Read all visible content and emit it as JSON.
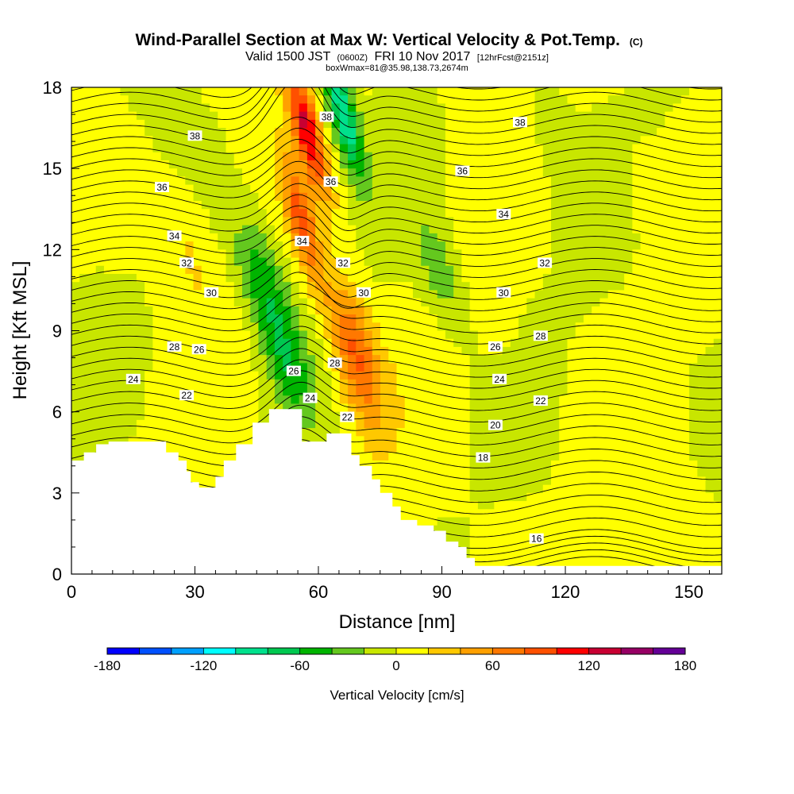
{
  "title": "Wind-Parallel Section at Max W: Vertical Velocity & Pot.Temp.",
  "title_mark": "(C)",
  "subtitle_part1": "Valid 1500 JST",
  "subtitle_small1": "(0600Z)",
  "subtitle_part2": "FRI 10 Nov 2017",
  "subtitle_small2": "[12hrFcst@2151z]",
  "subtitle2": "boxWmax=81@35.98,138.73,2674m",
  "chart_data": {
    "type": "heatmap",
    "xlabel": "Distance [nm]",
    "ylabel": "Height [Kft MSL]",
    "xlim": [
      0,
      158
    ],
    "ylim": [
      0,
      18
    ],
    "x_ticks": [
      0,
      30,
      60,
      90,
      120,
      150
    ],
    "y_ticks": [
      0,
      3,
      6,
      9,
      12,
      15,
      18
    ],
    "colorbar": {
      "label": "Vertical Velocity [cm/s]",
      "range": [
        -180,
        180
      ],
      "tick_labels": [
        -180,
        -120,
        -60,
        0,
        60,
        120,
        180
      ],
      "colors": [
        "#0000ff",
        "#0050ff",
        "#00a0ff",
        "#00ffff",
        "#00e08c",
        "#00c850",
        "#00b400",
        "#64c81e",
        "#c8e600",
        "#ffff00",
        "#ffc800",
        "#ffa000",
        "#ff7800",
        "#ff5000",
        "#ff0000",
        "#c80032",
        "#960064",
        "#640096"
      ]
    },
    "series": [
      {
        "name": "vertical_velocity_features_cm_s",
        "values": [
          {
            "x": 57,
            "y": 16.5,
            "w": 115
          },
          {
            "x": 56,
            "y": 13.0,
            "w": 80
          },
          {
            "x": 68,
            "y": 9.0,
            "w": 60
          },
          {
            "x": 70,
            "y": 7.0,
            "w": 45
          },
          {
            "x": 46,
            "y": 11.0,
            "w": -55
          },
          {
            "x": 52,
            "y": 8.0,
            "w": -50
          },
          {
            "x": 66,
            "y": 17.0,
            "w": -100
          },
          {
            "x": 28,
            "y": 12.0,
            "w": 20
          },
          {
            "x": 90,
            "y": 11.0,
            "w": -35
          },
          {
            "x": 118,
            "y": 16.0,
            "w": -20
          },
          {
            "x": 102,
            "y": 10.0,
            "w": 10
          },
          {
            "x": 140,
            "y": 14.0,
            "w": 10
          }
        ]
      }
    ],
    "terrain": {
      "x": [
        0,
        3,
        3,
        6,
        6,
        9,
        9,
        23,
        23,
        26,
        26,
        28,
        28,
        29,
        29,
        31,
        31,
        35,
        35,
        37,
        37,
        40,
        40,
        44,
        44,
        48,
        48,
        56,
        56,
        62,
        62,
        68,
        68,
        70,
        70,
        73,
        73,
        75,
        75,
        78,
        78,
        80,
        80,
        84,
        84,
        88,
        88,
        91,
        91,
        94,
        94,
        96,
        96,
        98,
        98,
        158
      ],
      "y": [
        4.2,
        4.2,
        4.5,
        4.5,
        4.8,
        4.8,
        4.9,
        4.9,
        4.5,
        4.5,
        4.2,
        4.2,
        3.8,
        3.8,
        3.4,
        3.4,
        3.2,
        3.2,
        3.6,
        3.6,
        4.2,
        4.2,
        4.8,
        4.8,
        5.6,
        5.6,
        6.1,
        6.1,
        4.9,
        4.9,
        5.2,
        5.2,
        4.4,
        4.4,
        4.0,
        4.0,
        3.5,
        3.5,
        3.0,
        3.0,
        2.5,
        2.5,
        2.0,
        2.0,
        1.8,
        1.8,
        1.6,
        1.6,
        1.2,
        1.2,
        1.0,
        1.0,
        0.6,
        0.6,
        0.3,
        0.3
      ]
    },
    "theta_contours": [
      {
        "name": "16",
        "values": [
          16
        ]
      },
      {
        "name": "18",
        "values": [
          18
        ]
      },
      {
        "name": "20",
        "values": [
          20
        ]
      },
      {
        "name": "22",
        "values": [
          22
        ]
      },
      {
        "name": "24",
        "values": [
          24
        ]
      },
      {
        "name": "26",
        "values": [
          26
        ]
      },
      {
        "name": "28",
        "values": [
          28
        ]
      },
      {
        "name": "30",
        "values": [
          30
        ]
      },
      {
        "name": "32",
        "values": [
          32
        ]
      },
      {
        "name": "34",
        "values": [
          34
        ]
      },
      {
        "name": "36",
        "values": [
          36
        ]
      },
      {
        "name": "38",
        "values": [
          38
        ]
      }
    ],
    "contour_labels": [
      {
        "text": "38",
        "x": 30,
        "y": 16.2
      },
      {
        "text": "38",
        "x": 62,
        "y": 16.9
      },
      {
        "text": "38",
        "x": 109,
        "y": 16.7
      },
      {
        "text": "36",
        "x": 22,
        "y": 14.3
      },
      {
        "text": "36",
        "x": 63,
        "y": 14.5
      },
      {
        "text": "36",
        "x": 95,
        "y": 14.9
      },
      {
        "text": "34",
        "x": 25,
        "y": 12.5
      },
      {
        "text": "34",
        "x": 56,
        "y": 12.3
      },
      {
        "text": "34",
        "x": 105,
        "y": 13.3
      },
      {
        "text": "32",
        "x": 28,
        "y": 11.5
      },
      {
        "text": "32",
        "x": 66,
        "y": 11.5
      },
      {
        "text": "32",
        "x": 115,
        "y": 11.5
      },
      {
        "text": "30",
        "x": 34,
        "y": 10.4
      },
      {
        "text": "30",
        "x": 71,
        "y": 10.4
      },
      {
        "text": "30",
        "x": 105,
        "y": 10.4
      },
      {
        "text": "28",
        "x": 25,
        "y": 8.4
      },
      {
        "text": "28",
        "x": 64,
        "y": 7.8
      },
      {
        "text": "28",
        "x": 114,
        "y": 8.8
      },
      {
        "text": "26",
        "x": 31,
        "y": 8.3
      },
      {
        "text": "26",
        "x": 54,
        "y": 7.5
      },
      {
        "text": "26",
        "x": 103,
        "y": 8.4
      },
      {
        "text": "24",
        "x": 15,
        "y": 7.2
      },
      {
        "text": "24",
        "x": 58,
        "y": 6.5
      },
      {
        "text": "24",
        "x": 104,
        "y": 7.2
      },
      {
        "text": "22",
        "x": 28,
        "y": 6.6
      },
      {
        "text": "22",
        "x": 67,
        "y": 5.8
      },
      {
        "text": "22",
        "x": 114,
        "y": 6.4
      },
      {
        "text": "20",
        "x": 103,
        "y": 5.5
      },
      {
        "text": "18",
        "x": 100,
        "y": 4.3
      },
      {
        "text": "16",
        "x": 113,
        "y": 1.3
      }
    ]
  }
}
